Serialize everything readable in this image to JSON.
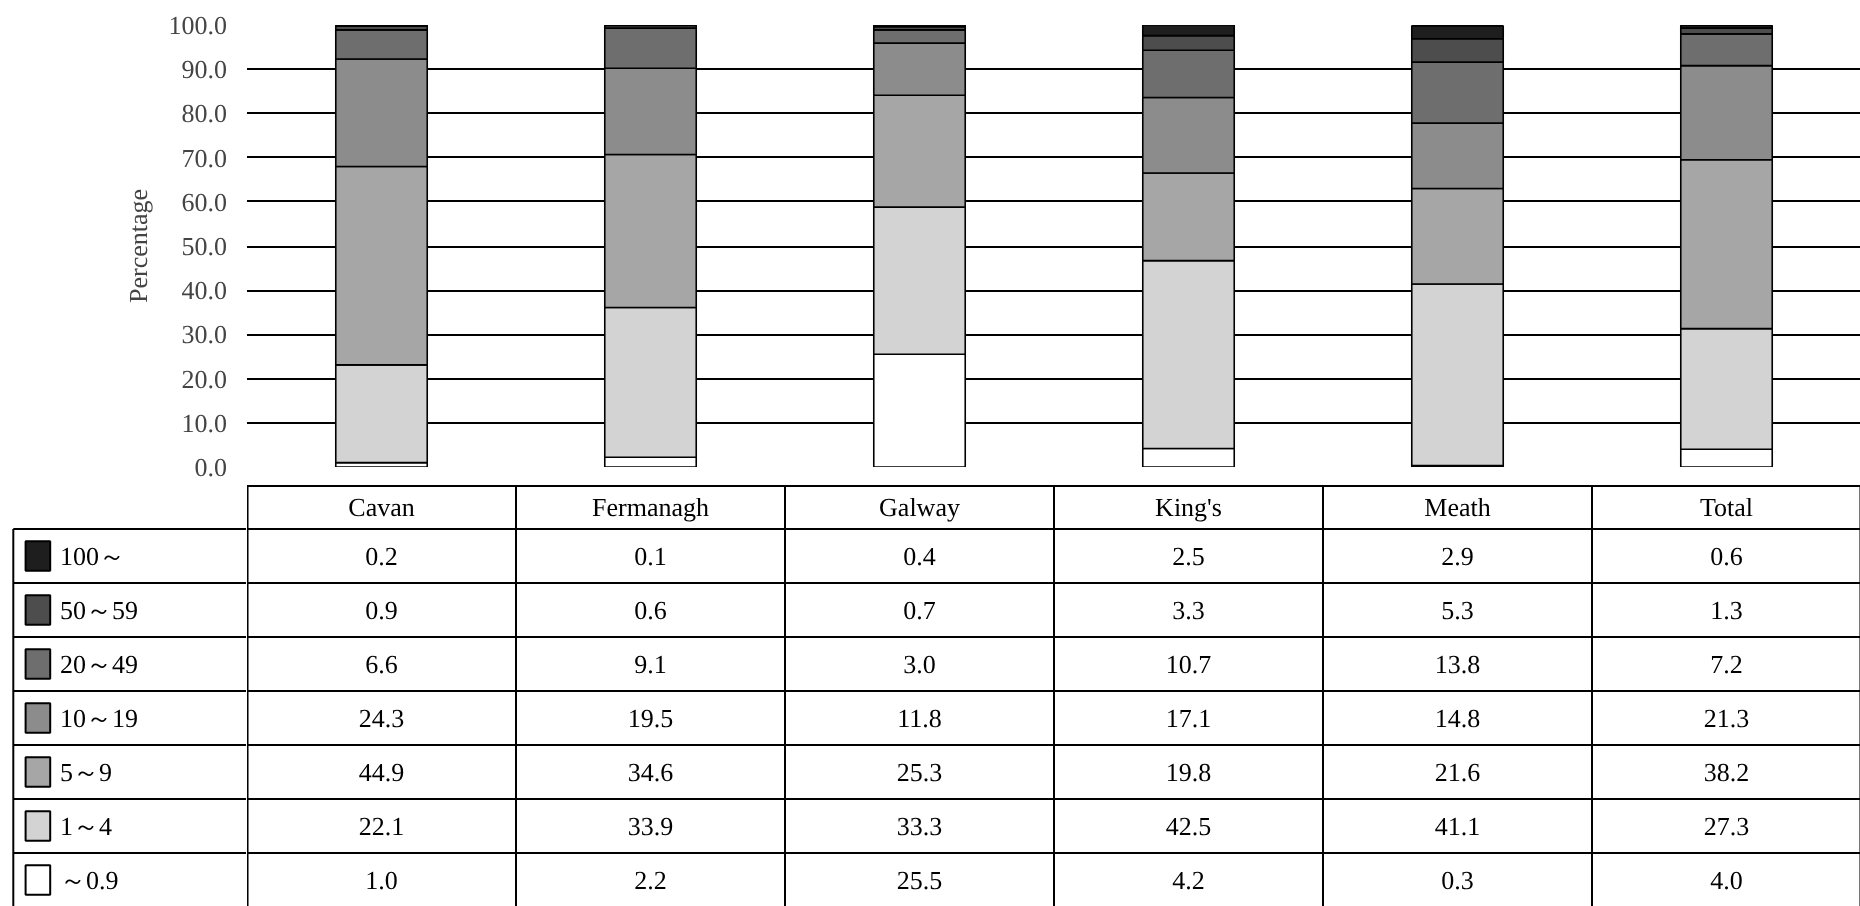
{
  "chart_data": {
    "type": "bar",
    "stacked": true,
    "ylabel": "Percentage",
    "categories": [
      "Cavan",
      "Fermanagh",
      "Galway",
      "King's",
      "Meath",
      "Total"
    ],
    "series": [
      {
        "name": "～0.9",
        "color": "#ffffff",
        "values": [
          1.0,
          2.2,
          25.5,
          4.2,
          0.3,
          4.0
        ],
        "value_labels": [
          "1.0",
          "2.2",
          "25.5",
          "4.2",
          "0.3",
          "4.0"
        ]
      },
      {
        "name": "1～4",
        "color": "#d3d3d3",
        "values": [
          22.1,
          33.9,
          33.3,
          42.5,
          41.1,
          27.3
        ],
        "value_labels": [
          "22.1",
          "33.9",
          "33.3",
          "42.5",
          "41.1",
          "27.3"
        ]
      },
      {
        "name": "5～9",
        "color": "#a6a6a6",
        "values": [
          44.9,
          34.6,
          25.3,
          19.8,
          21.6,
          38.2
        ],
        "value_labels": [
          "44.9",
          "34.6",
          "25.3",
          "19.8",
          "21.6",
          "38.2"
        ]
      },
      {
        "name": "10～19",
        "color": "#8c8c8c",
        "values": [
          24.3,
          19.5,
          11.8,
          17.1,
          14.8,
          21.3
        ],
        "value_labels": [
          "24.3",
          "19.5",
          "11.8",
          "17.1",
          "14.8",
          "21.3"
        ]
      },
      {
        "name": "20～49",
        "color": "#6e6e6e",
        "values": [
          6.6,
          9.1,
          3.0,
          10.7,
          13.8,
          7.2
        ],
        "value_labels": [
          "6.6",
          "9.1",
          "3.0",
          "10.7",
          "13.8",
          "7.2"
        ]
      },
      {
        "name": "50～59",
        "color": "#4d4d4d",
        "values": [
          0.9,
          0.6,
          0.7,
          3.3,
          5.3,
          1.3
        ],
        "value_labels": [
          "0.9",
          "0.6",
          "0.7",
          "3.3",
          "5.3",
          "1.3"
        ]
      },
      {
        "name": "100～",
        "color": "#1e1e1e",
        "values": [
          0.2,
          0.1,
          0.4,
          2.5,
          2.9,
          0.6
        ],
        "value_labels": [
          "0.2",
          "0.1",
          "0.4",
          "2.5",
          "2.9",
          "0.6"
        ]
      }
    ],
    "ylim": [
      0,
      100
    ],
    "yticks": [
      {
        "value": 0,
        "label": "0.0"
      },
      {
        "value": 10,
        "label": "10.0"
      },
      {
        "value": 20,
        "label": "20.0"
      },
      {
        "value": 30,
        "label": "30.0"
      },
      {
        "value": 40,
        "label": "40.0"
      },
      {
        "value": 50,
        "label": "50.0"
      },
      {
        "value": 60,
        "label": "60.0"
      },
      {
        "value": 70,
        "label": "70.0"
      },
      {
        "value": 80,
        "label": "80.0"
      },
      {
        "value": 90,
        "label": "90.0"
      },
      {
        "value": 100,
        "label": "100.0"
      }
    ],
    "grid": "y",
    "legend": "bottom"
  }
}
